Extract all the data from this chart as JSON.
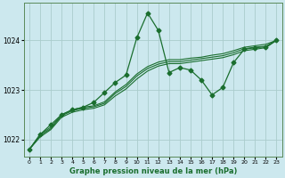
{
  "title": "Graphe pression niveau de la mer (hPa)",
  "bg_color": "#cce8ee",
  "grid_color": "#aacccc",
  "line_color": "#1a6e2e",
  "hours": [
    0,
    1,
    2,
    3,
    4,
    5,
    6,
    7,
    8,
    9,
    10,
    11,
    12,
    13,
    14,
    15,
    16,
    17,
    18,
    19,
    20,
    21,
    22,
    23
  ],
  "main_line": [
    1021.8,
    1022.1,
    1022.3,
    1022.5,
    1022.6,
    1022.65,
    1022.75,
    1022.95,
    1023.15,
    1023.3,
    1024.05,
    1024.55,
    1024.2,
    1023.35,
    1023.45,
    1023.4,
    1023.2,
    1022.9,
    1023.05,
    1023.55,
    1023.82,
    1023.85,
    1023.87,
    1024.0
  ],
  "line2": [
    1021.8,
    1022.05,
    1022.2,
    1022.45,
    1022.55,
    1022.6,
    1022.63,
    1022.7,
    1022.88,
    1023.02,
    1023.22,
    1023.38,
    1023.48,
    1023.53,
    1023.53,
    1023.56,
    1023.59,
    1023.62,
    1023.65,
    1023.71,
    1023.79,
    1023.82,
    1023.85,
    1024.0
  ],
  "line3": [
    1021.8,
    1022.08,
    1022.22,
    1022.48,
    1022.58,
    1022.63,
    1022.66,
    1022.73,
    1022.93,
    1023.07,
    1023.28,
    1023.43,
    1023.52,
    1023.57,
    1023.57,
    1023.6,
    1023.63,
    1023.66,
    1023.69,
    1023.75,
    1023.83,
    1023.86,
    1023.88,
    1024.0
  ],
  "line4": [
    1021.8,
    1022.1,
    1022.25,
    1022.5,
    1022.6,
    1022.65,
    1022.68,
    1022.76,
    1022.96,
    1023.11,
    1023.32,
    1023.47,
    1023.56,
    1023.61,
    1023.61,
    1023.64,
    1023.66,
    1023.7,
    1023.73,
    1023.79,
    1023.86,
    1023.89,
    1023.92,
    1024.0
  ],
  "ylim": [
    1021.65,
    1024.75
  ],
  "yticks": [
    1022.0,
    1023.0,
    1024.0
  ],
  "xlim": [
    -0.5,
    23.5
  ],
  "figsize": [
    3.2,
    2.0
  ],
  "dpi": 100
}
